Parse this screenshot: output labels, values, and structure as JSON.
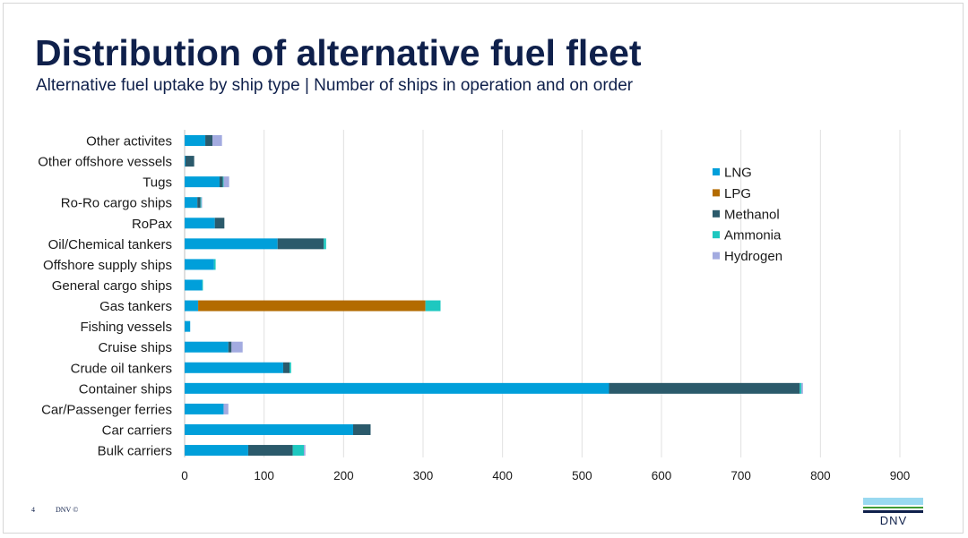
{
  "title": "Distribution of alternative fuel fleet",
  "subtitle": "Alternative fuel uptake by ship type | Number of ships in operation and on order",
  "footer": {
    "page_number": "4",
    "copyright": "DNV ©"
  },
  "logo": {
    "text": "DNV",
    "stripe_colors": [
      "#99d9f0",
      "#3f9c35",
      "#0f204b"
    ]
  },
  "chart_data": {
    "type": "bar",
    "orientation": "horizontal",
    "stacked": true,
    "categories": [
      "Other activites",
      "Other offshore vessels",
      "Tugs",
      "Ro-Ro cargo ships",
      "RoPax",
      "Oil/Chemical tankers",
      "Offshore supply ships",
      "General cargo ships",
      "Gas tankers",
      "Fishing vessels",
      "Cruise ships",
      "Crude oil tankers",
      "Container ships",
      "Car/Passenger ferries",
      "Car carriers",
      "Bulk carriers"
    ],
    "series": [
      {
        "name": "LNG",
        "color": "#009fda",
        "values": [
          26,
          1,
          44,
          16,
          38,
          117,
          37,
          22,
          17,
          7,
          55,
          124,
          534,
          49,
          212,
          80
        ]
      },
      {
        "name": "LPG",
        "color": "#b36b00",
        "values": [
          0,
          0,
          0,
          0,
          0,
          0,
          0,
          0,
          286,
          0,
          0,
          0,
          0,
          0,
          0,
          0
        ]
      },
      {
        "name": "Methanol",
        "color": "#2b5a6b",
        "values": [
          9,
          11,
          4,
          4,
          12,
          58,
          0,
          0,
          0,
          0,
          4,
          8,
          240,
          0,
          22,
          56
        ]
      },
      {
        "name": "Ammonia",
        "color": "#1ec8c0",
        "values": [
          0,
          0,
          1,
          1,
          0,
          3,
          2,
          1,
          19,
          0,
          0,
          2,
          2,
          0,
          0,
          14
        ]
      },
      {
        "name": "Hydrogen",
        "color": "#a3abe0",
        "values": [
          12,
          0,
          7,
          1,
          0,
          0,
          0,
          0,
          0,
          0,
          14,
          0,
          2,
          6,
          0,
          2
        ]
      }
    ],
    "xlim": [
      0,
      900
    ],
    "xticks": [
      "0",
      "100",
      "200",
      "300",
      "400",
      "500",
      "600",
      "700",
      "800",
      "900"
    ],
    "xlabel": "",
    "ylabel": "",
    "grid": "vertical",
    "legend": "right"
  }
}
